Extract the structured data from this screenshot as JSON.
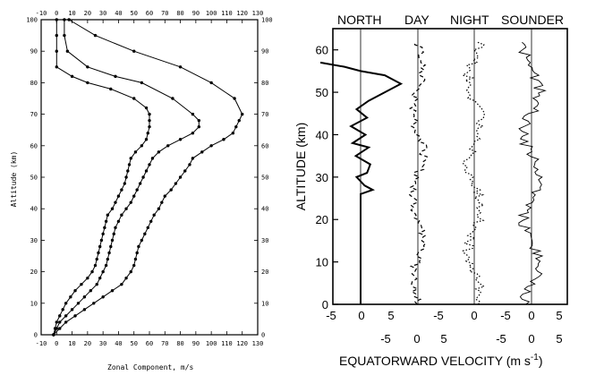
{
  "chart_data": [
    {
      "type": "line",
      "xlabel": "Zonal Component, m/s",
      "ylabel": "Altitude (km)",
      "xlim": [
        -10,
        130
      ],
      "ylim": [
        0,
        100
      ],
      "x_ticks": [
        "-10",
        "0",
        "10",
        "20",
        "30",
        "40",
        "50",
        "60",
        "70",
        "80",
        "90",
        "100",
        "110",
        "120",
        "130"
      ],
      "y_ticks": [
        "0",
        "10",
        "20",
        "30",
        "40",
        "50",
        "60",
        "70",
        "80",
        "90",
        "100"
      ],
      "series": [
        {
          "points": [
            [
              -2,
              0
            ],
            [
              -1,
              2
            ],
            [
              0,
              4
            ],
            [
              2,
              6
            ],
            [
              4,
              8
            ],
            [
              6,
              10
            ],
            [
              9,
              12
            ],
            [
              12,
              14
            ],
            [
              16,
              16
            ],
            [
              20,
              18
            ],
            [
              23,
              20
            ],
            [
              25,
              22
            ],
            [
              26,
              24
            ],
            [
              27,
              26
            ],
            [
              28,
              28
            ],
            [
              29,
              30
            ],
            [
              30,
              32
            ],
            [
              31,
              34
            ],
            [
              32,
              36
            ],
            [
              33,
              38
            ],
            [
              36,
              40
            ],
            [
              38,
              42
            ],
            [
              40,
              44
            ],
            [
              42,
              46
            ],
            [
              44,
              48
            ],
            [
              45,
              50
            ],
            [
              46,
              52
            ],
            [
              47,
              54
            ],
            [
              48,
              56
            ],
            [
              51,
              58
            ],
            [
              55,
              60
            ],
            [
              58,
              62
            ],
            [
              59,
              64
            ],
            [
              60,
              66
            ],
            [
              60,
              68
            ],
            [
              60,
              70
            ],
            [
              58,
              72
            ],
            [
              50,
              75
            ],
            [
              35,
              78
            ],
            [
              20,
              80
            ],
            [
              10,
              82
            ],
            [
              0,
              85
            ],
            [
              0,
              90
            ],
            [
              0,
              95
            ],
            [
              0,
              100
            ]
          ]
        },
        {
          "points": [
            [
              -2,
              0
            ],
            [
              0,
              2
            ],
            [
              2,
              4
            ],
            [
              6,
              6
            ],
            [
              10,
              8
            ],
            [
              14,
              10
            ],
            [
              18,
              12
            ],
            [
              22,
              14
            ],
            [
              26,
              16
            ],
            [
              28,
              18
            ],
            [
              30,
              20
            ],
            [
              32,
              22
            ],
            [
              33,
              24
            ],
            [
              34,
              26
            ],
            [
              35,
              28
            ],
            [
              36,
              30
            ],
            [
              37,
              32
            ],
            [
              38,
              34
            ],
            [
              40,
              36
            ],
            [
              42,
              38
            ],
            [
              45,
              40
            ],
            [
              48,
              42
            ],
            [
              50,
              44
            ],
            [
              52,
              46
            ],
            [
              54,
              48
            ],
            [
              56,
              50
            ],
            [
              58,
              52
            ],
            [
              60,
              54
            ],
            [
              62,
              56
            ],
            [
              66,
              58
            ],
            [
              72,
              60
            ],
            [
              80,
              62
            ],
            [
              88,
              64
            ],
            [
              92,
              66
            ],
            [
              92,
              68
            ],
            [
              88,
              70
            ],
            [
              75,
              75
            ],
            [
              55,
              80
            ],
            [
              38,
              82
            ],
            [
              20,
              85
            ],
            [
              7,
              90
            ],
            [
              5,
              95
            ],
            [
              5,
              100
            ]
          ]
        },
        {
          "points": [
            [
              -2,
              0
            ],
            [
              2,
              2
            ],
            [
              6,
              4
            ],
            [
              12,
              6
            ],
            [
              18,
              8
            ],
            [
              24,
              10
            ],
            [
              30,
              12
            ],
            [
              36,
              14
            ],
            [
              42,
              16
            ],
            [
              45,
              18
            ],
            [
              48,
              20
            ],
            [
              50,
              22
            ],
            [
              51,
              24
            ],
            [
              52,
              26
            ],
            [
              53,
              28
            ],
            [
              55,
              30
            ],
            [
              57,
              32
            ],
            [
              59,
              34
            ],
            [
              61,
              36
            ],
            [
              63,
              38
            ],
            [
              66,
              40
            ],
            [
              68,
              42
            ],
            [
              70,
              44
            ],
            [
              74,
              46
            ],
            [
              77,
              48
            ],
            [
              80,
              50
            ],
            [
              83,
              52
            ],
            [
              86,
              54
            ],
            [
              88,
              56
            ],
            [
              94,
              58
            ],
            [
              100,
              60
            ],
            [
              108,
              62
            ],
            [
              114,
              64
            ],
            [
              116,
              66
            ],
            [
              118,
              68
            ],
            [
              120,
              70
            ],
            [
              115,
              75
            ],
            [
              100,
              80
            ],
            [
              80,
              85
            ],
            [
              50,
              90
            ],
            [
              25,
              95
            ],
            [
              8,
              100
            ]
          ]
        }
      ]
    },
    {
      "type": "line",
      "panels": [
        "NORTH",
        "DAY",
        "NIGHT",
        "SOUNDER"
      ],
      "xlabel": "EQUATORWARD VELOCITY (m s",
      "xlabel_exp": "-1",
      "xlabel_close": ")",
      "ylabel": "ALTITUDE (km)",
      "ylim": [
        0,
        65
      ],
      "y_ticks": [
        "0",
        "10",
        "20",
        "30",
        "40",
        "50",
        "60"
      ],
      "x_ticks_row1": [
        "-5",
        "0",
        "5",
        "-5",
        "0",
        "-5",
        "0",
        "5"
      ],
      "x_ticks_row2": [
        "-5",
        "0",
        "5",
        "-5",
        "0",
        "5"
      ],
      "north": {
        "alt": [
          0,
          2,
          4,
          6,
          8,
          10,
          12,
          14,
          16,
          18,
          20,
          22,
          24,
          26,
          27,
          28,
          30,
          31,
          33,
          35,
          37,
          38,
          40,
          42,
          44,
          46,
          48,
          50,
          52,
          54,
          55,
          56,
          57
        ],
        "v": [
          0,
          0,
          0,
          0,
          0,
          0,
          0,
          0,
          0,
          0,
          0,
          0,
          0,
          0,
          1.5,
          0.5,
          -0.5,
          0.8,
          1.2,
          -0.6,
          1.0,
          -1.0,
          0.6,
          -1.2,
          0.8,
          -0.5,
          1.0,
          3.0,
          5.0,
          3.0,
          0,
          -2.0,
          -5.0
        ]
      }
    }
  ]
}
